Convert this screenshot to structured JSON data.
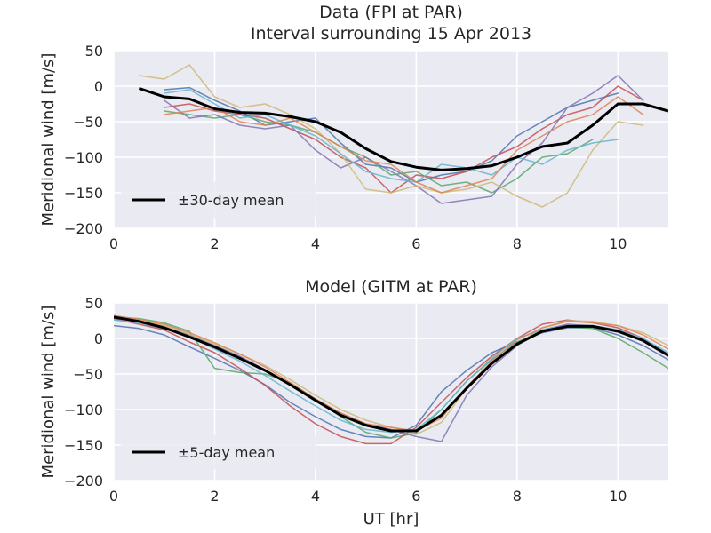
{
  "chart_data": [
    {
      "type": "line",
      "title": "Data (FPI at PAR)",
      "subtitle": "Interval surrounding 15 Apr 2013",
      "xlabel": "",
      "ylabel": "Meridional wind [m/s]",
      "xlim": [
        0,
        11
      ],
      "ylim": [
        -200,
        50
      ],
      "xticks": [
        0,
        2,
        4,
        6,
        8,
        10
      ],
      "yticks": [
        -200,
        -150,
        -100,
        -50,
        0,
        50
      ],
      "grid": true,
      "legend": {
        "location": "lower-left",
        "entries": [
          "±30-day mean"
        ]
      },
      "series": [
        {
          "name": "±30-day mean",
          "color": "#000000",
          "x": [
            0.5,
            1,
            1.5,
            2,
            2.5,
            3,
            3.5,
            4,
            4.5,
            5,
            5.5,
            6,
            6.5,
            7,
            7.5,
            8,
            8.5,
            9,
            9.5,
            10,
            10.5,
            11
          ],
          "y": [
            -3,
            -15,
            -18,
            -32,
            -37,
            -38,
            -43,
            -50,
            -65,
            -88,
            -106,
            -114,
            -118,
            -116,
            -112,
            -100,
            -85,
            -80,
            -55,
            -25,
            -25,
            -35
          ]
        },
        {
          "color": "#4c72b0",
          "x": [
            1,
            1.5,
            2,
            2.5,
            3,
            3.5,
            4,
            4.5,
            5,
            5.5,
            6,
            6.5,
            7,
            7.5,
            8,
            8.5,
            9,
            9.5,
            10
          ],
          "y": [
            -5,
            -2,
            -20,
            -35,
            -55,
            -50,
            -45,
            -80,
            -110,
            -115,
            -135,
            -125,
            -120,
            -105,
            -70,
            -50,
            -30,
            -20,
            -10
          ]
        },
        {
          "color": "#55a868",
          "x": [
            1,
            1.5,
            2,
            2.5,
            3,
            3.5,
            4,
            4.5,
            5,
            5.5,
            6,
            6.5,
            7,
            7.5,
            8,
            8.5,
            9,
            9.5
          ],
          "y": [
            -35,
            -40,
            -45,
            -40,
            -50,
            -55,
            -65,
            -85,
            -100,
            -125,
            -120,
            -140,
            -135,
            -150,
            -130,
            -100,
            -95,
            -75
          ]
        },
        {
          "color": "#c44e52",
          "x": [
            1,
            1.5,
            2,
            2.5,
            3,
            3.5,
            4,
            4.5,
            5,
            5.5,
            6,
            6.5,
            7,
            7.5,
            8,
            8.5,
            9,
            9.5,
            10,
            10.5
          ],
          "y": [
            -30,
            -25,
            -35,
            -40,
            -45,
            -60,
            -75,
            -100,
            -115,
            -150,
            -125,
            -130,
            -120,
            -100,
            -85,
            -60,
            -40,
            -30,
            0,
            -20
          ]
        },
        {
          "color": "#8172b2",
          "x": [
            1,
            1.5,
            2,
            2.5,
            3,
            3.5,
            4,
            4.5,
            5,
            5.5,
            6,
            6.5,
            7,
            7.5,
            8,
            8.5,
            9,
            9.5,
            10,
            10.5
          ],
          "y": [
            -20,
            -45,
            -40,
            -55,
            -60,
            -55,
            -90,
            -115,
            -100,
            -120,
            -140,
            -165,
            -160,
            -155,
            -110,
            -80,
            -30,
            -10,
            15,
            -20
          ]
        },
        {
          "color": "#ccb974",
          "x": [
            0.5,
            1,
            1.5,
            2,
            2.5,
            3,
            3.5,
            4,
            4.5,
            5,
            5.5,
            6,
            6.5,
            7,
            7.5,
            8,
            8.5,
            9,
            9.5,
            10,
            10.5
          ],
          "y": [
            15,
            10,
            30,
            -15,
            -30,
            -25,
            -40,
            -60,
            -95,
            -145,
            -150,
            -140,
            -150,
            -145,
            -135,
            -155,
            -170,
            -150,
            -90,
            -50,
            -55
          ]
        },
        {
          "color": "#64b5cd",
          "x": [
            1,
            1.5,
            2,
            2.5,
            3,
            3.5,
            4,
            4.5,
            5,
            5.5,
            6,
            6.5,
            7,
            7.5,
            8,
            8.5,
            9,
            9.5,
            10
          ],
          "y": [
            -10,
            -5,
            -25,
            -45,
            -40,
            -55,
            -70,
            -95,
            -120,
            -130,
            -135,
            -110,
            -115,
            -125,
            -100,
            -110,
            -90,
            -80,
            -75
          ]
        },
        {
          "color": "#dd8452",
          "x": [
            1,
            1.5,
            2,
            2.5,
            3,
            3.5,
            4,
            4.5,
            5,
            5.5,
            6,
            6.5,
            7,
            7.5,
            8,
            8.5,
            9,
            9.5,
            10,
            10.5
          ],
          "y": [
            -40,
            -35,
            -30,
            -50,
            -55,
            -45,
            -65,
            -85,
            -105,
            -110,
            -135,
            -150,
            -140,
            -130,
            -90,
            -70,
            -50,
            -40,
            -15,
            -40
          ]
        }
      ]
    },
    {
      "type": "line",
      "title": "Model (GITM at PAR)",
      "xlabel": "UT [hr]",
      "ylabel": "Meridional wind [m/s]",
      "xlim": [
        0,
        11
      ],
      "ylim": [
        -200,
        50
      ],
      "xticks": [
        0,
        2,
        4,
        6,
        8,
        10
      ],
      "yticks": [
        -200,
        -150,
        -100,
        -50,
        0,
        50
      ],
      "grid": true,
      "legend": {
        "location": "lower-left",
        "entries": [
          "±5-day mean"
        ]
      },
      "series": [
        {
          "name": "±5-day mean",
          "color": "#000000",
          "x": [
            0,
            0.5,
            1,
            1.5,
            2,
            2.5,
            3,
            3.5,
            4,
            4.5,
            5,
            5.5,
            6,
            6.5,
            7,
            7.5,
            8,
            8.5,
            9,
            9.5,
            10,
            10.5,
            11
          ],
          "y": [
            30,
            24,
            15,
            2,
            -12,
            -28,
            -45,
            -65,
            -87,
            -108,
            -122,
            -130,
            -130,
            -108,
            -70,
            -35,
            -8,
            10,
            17,
            17,
            10,
            -3,
            -24
          ]
        },
        {
          "color": "#4c72b0",
          "x": [
            0,
            0.5,
            1,
            1.5,
            2,
            2.5,
            3,
            3.5,
            4,
            4.5,
            5,
            5.5,
            6,
            6.5,
            7,
            7.5,
            8,
            8.5,
            9,
            9.5,
            10,
            10.5,
            11
          ],
          "y": [
            18,
            14,
            5,
            -12,
            -28,
            -45,
            -65,
            -90,
            -110,
            -128,
            -138,
            -140,
            -122,
            -75,
            -45,
            -20,
            -5,
            8,
            15,
            15,
            5,
            -10,
            -30
          ]
        },
        {
          "color": "#55a868",
          "x": [
            0,
            0.5,
            1,
            1.5,
            2,
            2.5,
            3,
            3.5,
            4,
            4.5,
            5,
            5.5,
            6,
            6.5,
            7,
            7.5,
            8,
            8.5,
            9,
            9.5,
            10,
            10.5,
            11
          ],
          "y": [
            30,
            28,
            22,
            10,
            -42,
            -48,
            -50,
            -62,
            -85,
            -110,
            -132,
            -140,
            -133,
            -100,
            -60,
            -30,
            -5,
            10,
            16,
            14,
            0,
            -20,
            -42
          ]
        },
        {
          "color": "#c44e52",
          "x": [
            0,
            0.5,
            1,
            1.5,
            2,
            2.5,
            3,
            3.5,
            4,
            4.5,
            5,
            5.5,
            6,
            6.5,
            7,
            7.5,
            8,
            8.5,
            9,
            9.5,
            10,
            10.5,
            11
          ],
          "y": [
            28,
            20,
            12,
            -5,
            -20,
            -42,
            -66,
            -95,
            -120,
            -138,
            -148,
            -148,
            -125,
            -90,
            -55,
            -25,
            0,
            20,
            26,
            22,
            15,
            0,
            -25
          ]
        },
        {
          "color": "#8172b2",
          "x": [
            0,
            0.5,
            1,
            1.5,
            2,
            2.5,
            3,
            3.5,
            4,
            4.5,
            5,
            5.5,
            6,
            6.5,
            7,
            7.5,
            8,
            8.5,
            9,
            9.5,
            10,
            10.5,
            11
          ],
          "y": [
            32,
            26,
            17,
            5,
            -10,
            -25,
            -44,
            -64,
            -85,
            -105,
            -120,
            -128,
            -138,
            -145,
            -80,
            -40,
            -10,
            12,
            20,
            18,
            12,
            -2,
            -22
          ]
        },
        {
          "color": "#ccb974",
          "x": [
            0,
            0.5,
            1,
            1.5,
            2,
            2.5,
            3,
            3.5,
            4,
            4.5,
            5,
            5.5,
            6,
            6.5,
            7,
            7.5,
            8,
            8.5,
            9,
            9.5,
            10,
            10.5,
            11
          ],
          "y": [
            30,
            26,
            18,
            6,
            -8,
            -22,
            -38,
            -58,
            -80,
            -100,
            -115,
            -125,
            -135,
            -118,
            -70,
            -35,
            -8,
            15,
            25,
            24,
            18,
            8,
            -10
          ]
        },
        {
          "color": "#64b5cd",
          "x": [
            0,
            0.5,
            1,
            1.5,
            2,
            2.5,
            3,
            3.5,
            4,
            4.5,
            5,
            5.5,
            6,
            6.5,
            7,
            7.5,
            8,
            8.5,
            9,
            9.5,
            10,
            10.5,
            11
          ],
          "y": [
            26,
            22,
            14,
            2,
            -15,
            -32,
            -52,
            -74,
            -95,
            -115,
            -128,
            -132,
            -128,
            -100,
            -60,
            -28,
            0,
            12,
            18,
            18,
            12,
            0,
            -20
          ]
        },
        {
          "color": "#dd8452",
          "x": [
            0,
            0.5,
            1,
            1.5,
            2,
            2.5,
            3,
            3.5,
            4,
            4.5,
            5,
            5.5,
            6,
            6.5,
            7,
            7.5,
            8,
            8.5,
            9,
            9.5,
            10,
            10.5,
            11
          ],
          "y": [
            32,
            27,
            20,
            8,
            -6,
            -22,
            -40,
            -62,
            -85,
            -105,
            -120,
            -125,
            -130,
            -112,
            -68,
            -32,
            -2,
            15,
            24,
            22,
            18,
            5,
            -15
          ]
        }
      ]
    }
  ]
}
